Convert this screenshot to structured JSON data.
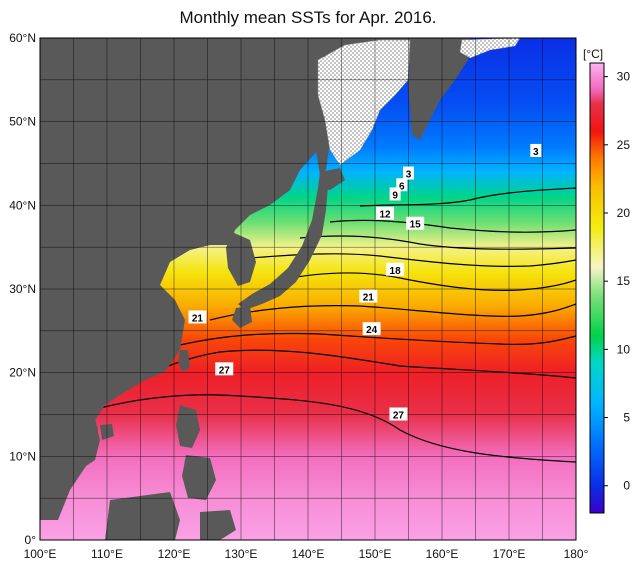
{
  "title": "Monthly mean SSTs for Apr. 2016.",
  "colorbar": {
    "unit": "[°C]",
    "min": -2,
    "max": 31,
    "ticks": [
      0,
      5,
      10,
      15,
      20,
      25,
      30
    ],
    "stops": [
      {
        "v": -2,
        "c": "#3a00c8"
      },
      {
        "v": 0,
        "c": "#0a2ee6"
      },
      {
        "v": 3,
        "c": "#0070ff"
      },
      {
        "v": 6,
        "c": "#00b4ff"
      },
      {
        "v": 9,
        "c": "#00d6c8"
      },
      {
        "v": 11,
        "c": "#00d24a"
      },
      {
        "v": 14,
        "c": "#7fe07a"
      },
      {
        "v": 16,
        "c": "#f5f5c8"
      },
      {
        "v": 19,
        "c": "#f4ec10"
      },
      {
        "v": 22,
        "c": "#f8bc00"
      },
      {
        "v": 24,
        "c": "#ff7a00"
      },
      {
        "v": 26,
        "c": "#f21410"
      },
      {
        "v": 28,
        "c": "#e8304a"
      },
      {
        "v": 29,
        "c": "#f266b8"
      },
      {
        "v": 31,
        "c": "#fcb4f4"
      }
    ]
  },
  "map": {
    "lon_range": [
      100,
      180
    ],
    "lat_range": [
      0,
      60
    ],
    "lon_ticks": [
      "100°E",
      "110°E",
      "120°E",
      "130°E",
      "140°E",
      "150°E",
      "160°E",
      "170°E",
      "180°"
    ],
    "lat_ticks": [
      "0°",
      "10°N",
      "20°N",
      "30°N",
      "40°N",
      "50°N",
      "60°N"
    ],
    "land_color": "#595959",
    "sea_ice_color": "#ffffff",
    "grid_color": "#000000",
    "sst_bands": [
      {
        "lat": 0,
        "sst": 30.5
      },
      {
        "lat": 5,
        "sst": 30.0
      },
      {
        "lat": 10,
        "sst": 29.2
      },
      {
        "lat": 15,
        "sst": 28.0
      },
      {
        "lat": 20,
        "sst": 26.8
      },
      {
        "lat": 24,
        "sst": 25.0
      },
      {
        "lat": 28,
        "sst": 22.5
      },
      {
        "lat": 32,
        "sst": 19.5
      },
      {
        "lat": 35,
        "sst": 17.0
      },
      {
        "lat": 38,
        "sst": 13.5
      },
      {
        "lat": 41,
        "sst": 10.0
      },
      {
        "lat": 44,
        "sst": 6.0
      },
      {
        "lat": 47,
        "sst": 3.5
      },
      {
        "lat": 52,
        "sst": 1.5
      },
      {
        "lat": 60,
        "sst": 0.0
      }
    ],
    "contour_labels": [
      {
        "text": "3",
        "lon": 174,
        "lat": 46.5
      },
      {
        "text": "3",
        "lon": 155,
        "lat": 43.8
      },
      {
        "text": "6",
        "lon": 154,
        "lat": 42.4
      },
      {
        "text": "9",
        "lon": 153,
        "lat": 41.3
      },
      {
        "text": "12",
        "lon": 151.5,
        "lat": 39.0
      },
      {
        "text": "15",
        "lon": 156,
        "lat": 37.8
      },
      {
        "text": "18",
        "lon": 153,
        "lat": 32.3
      },
      {
        "text": "21",
        "lon": 149,
        "lat": 29.1
      },
      {
        "text": "21",
        "lon": 123.5,
        "lat": 26.6
      },
      {
        "text": "24",
        "lon": 149.5,
        "lat": 25.2
      },
      {
        "text": "27",
        "lon": 127.5,
        "lat": 20.4
      },
      {
        "text": "27",
        "lon": 153.5,
        "lat": 15.0
      }
    ]
  }
}
